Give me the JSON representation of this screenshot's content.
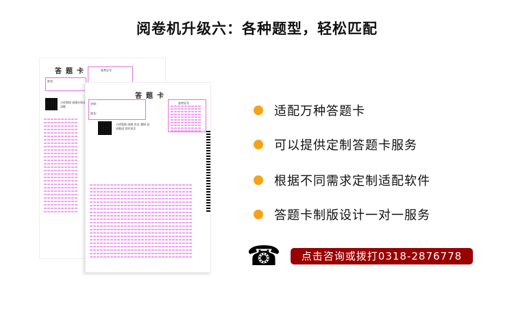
{
  "title": "阅卷机升级六：各种题型，轻松匹配",
  "sheet_back": {
    "title": "答题卡",
    "name_label": "姓名:",
    "exam_no_label": "准考证号",
    "qr_text": "小优智校 成绩分析自动推"
  },
  "sheet_front": {
    "title": "答题卡",
    "school_label": "学校:",
    "name_label": "姓名:",
    "exam_no_label": "准考证号",
    "qr_text": "小优智校 成绩 作业 通知 自动推送 实时关注"
  },
  "features": [
    "适配万种答题卡",
    "可以提供定制答题卡服务",
    "根据不同需求定制适配软件",
    "答题卡制版设计一对一服务"
  ],
  "accent": "#f5a21b",
  "contact": {
    "icon": "telephone-icon",
    "label": "点击咨询或拨打0318-2876778",
    "color": "#990000"
  }
}
